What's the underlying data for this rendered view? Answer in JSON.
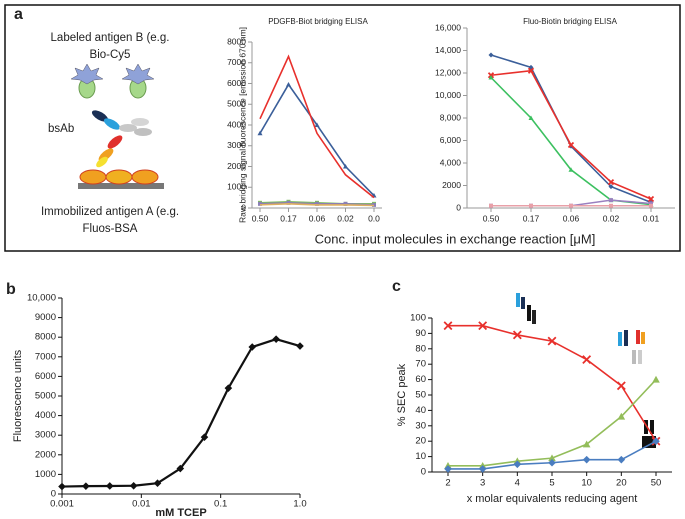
{
  "panel_labels": [
    "a",
    "b",
    "c"
  ],
  "illustration": {
    "antigen_b": [
      "Labeled antigen B (e.g.",
      "Bio-Cy5"
    ],
    "bsab": "bsAb",
    "antigen_a": [
      "Immobilized antigen A (e.g.",
      "Fluos-BSA"
    ]
  },
  "panel_a": {
    "ylabel": "Raw bridging signal fluorescence [emission 670 nm]",
    "xlabel": "Conc. input molecules in exchange reaction [μM]"
  },
  "chart_data": [
    {
      "type": "line",
      "title": "PDGFB-Biot bridging ELISA",
      "categories": [
        "0.50",
        "0.17",
        "0.06",
        "0.02",
        "0.0"
      ],
      "ylim": [
        0,
        8000
      ],
      "yticks": [
        0,
        1000,
        2000,
        3000,
        4000,
        5000,
        6000,
        7000,
        8000
      ],
      "series": [
        {
          "color": "#3b5f9a",
          "marker": "triangle",
          "values": [
            3600,
            5950,
            4000,
            2000,
            600
          ]
        },
        {
          "color": "#e8302c",
          "values": [
            4300,
            7300,
            3600,
            1600,
            500
          ]
        },
        {
          "color": "#7fbf5f",
          "marker": "square",
          "values": [
            250,
            300,
            250,
            200,
            200
          ]
        },
        {
          "color": "#8a7fb5",
          "marker": "square",
          "values": [
            200,
            250,
            200,
            200,
            150
          ]
        },
        {
          "color": "#e0b060",
          "values": [
            150,
            200,
            150,
            150,
            120
          ]
        }
      ]
    },
    {
      "type": "line",
      "title": "Fluo-Biotin bridging ELISA",
      "categories": [
        "0.50",
        "0.17",
        "0.06",
        "0.02",
        "0.01"
      ],
      "ylim": [
        0,
        16000
      ],
      "yticks": [
        0,
        2000,
        {
          "value": 4000,
          "label": "4,000"
        },
        {
          "value": 6000,
          "label": "6,000"
        },
        {
          "value": 8000,
          "label": "8,000"
        },
        {
          "value": 10000,
          "label": "10,000"
        },
        {
          "value": 12000,
          "label": "12,000"
        },
        {
          "value": 14000,
          "label": "14,000"
        },
        {
          "value": 16000,
          "label": "16,000"
        }
      ],
      "series": [
        {
          "color": "#3b5f9a",
          "marker": "diamond",
          "values": [
            13600,
            12500,
            5500,
            1900,
            500
          ]
        },
        {
          "color": "#e8302c",
          "marker": "x",
          "values": [
            11800,
            12200,
            5600,
            2300,
            800
          ]
        },
        {
          "color": "#3cc060",
          "marker": "triangle",
          "values": [
            11600,
            8000,
            3400,
            700,
            300
          ]
        },
        {
          "color": "#9a80c0",
          "marker": "square",
          "values": [
            200,
            200,
            200,
            700,
            400
          ]
        },
        {
          "color": "#e8a0a8",
          "marker": "square",
          "values": [
            200,
            200,
            200,
            200,
            200
          ]
        }
      ]
    },
    {
      "type": "line",
      "xscale": "log",
      "ylabel": "Fluorescence units",
      "xlabel": "mM TCEP",
      "xlim": [
        0.001,
        1
      ],
      "xticks": [
        0.001,
        0.01,
        0.1,
        {
          "value": 1,
          "label": "1.0"
        }
      ],
      "ylim": [
        0,
        10000
      ],
      "yticks": [
        0,
        1000,
        2000,
        3000,
        4000,
        5000,
        6000,
        7000,
        8000,
        9000,
        {
          "value": 10000,
          "label": "10,000"
        }
      ],
      "x": [
        0.001,
        0.002,
        0.004,
        0.008,
        0.016,
        0.031,
        0.0625,
        0.125,
        0.25,
        0.5,
        1
      ],
      "series": [
        {
          "color": "#111111",
          "marker": "diamond",
          "values": [
            380,
            400,
            410,
            420,
            550,
            1300,
            2900,
            5400,
            7500,
            7900,
            7550
          ]
        }
      ]
    },
    {
      "type": "line",
      "ylabel": "% SEC peak",
      "xlabel": "x molar equivalents reducing agent",
      "categories": [
        "2",
        "3",
        "4",
        "5",
        "10",
        "20",
        "50"
      ],
      "ylim": [
        0,
        100
      ],
      "yticks": [
        0,
        10,
        20,
        30,
        40,
        50,
        60,
        70,
        80,
        90,
        100
      ],
      "series": [
        {
          "color": "#e8302c",
          "marker": "x",
          "values": [
            95,
            95,
            89,
            85,
            73,
            56,
            20
          ]
        },
        {
          "color": "#93bd5a",
          "marker": "triangle",
          "values": [
            4,
            4,
            7,
            9,
            18,
            36,
            60
          ]
        },
        {
          "color": "#4a7dc0",
          "marker": "diamond",
          "values": [
            2,
            2,
            5,
            6,
            8,
            8,
            20
          ]
        }
      ]
    }
  ]
}
